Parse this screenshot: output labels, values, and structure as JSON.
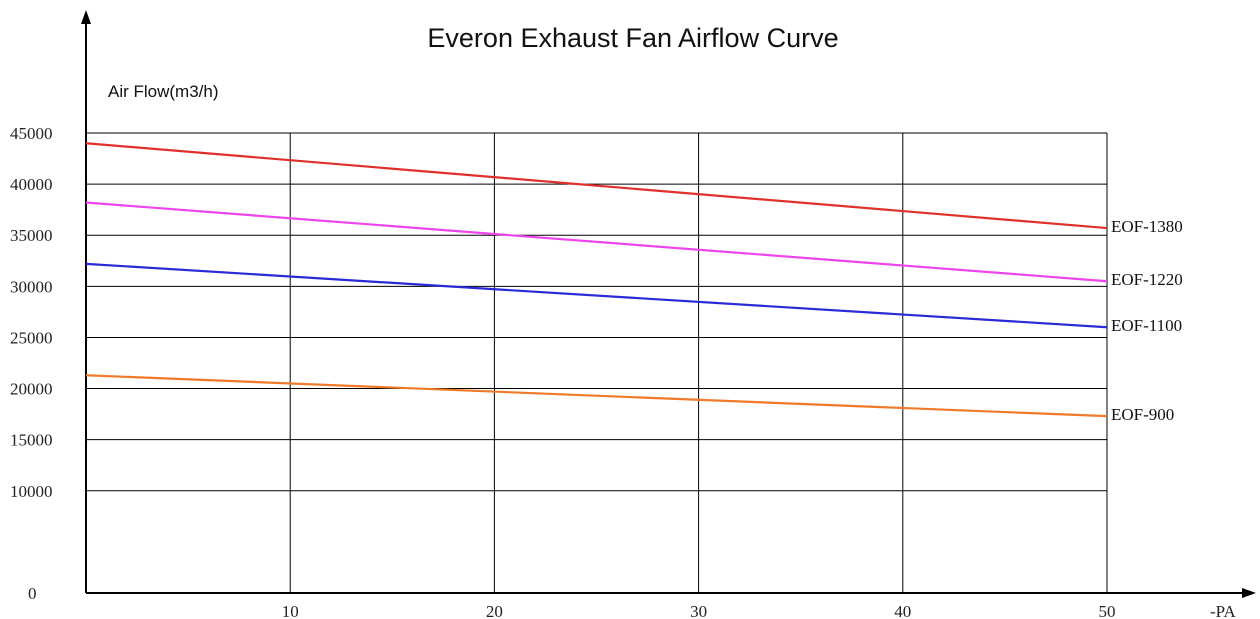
{
  "chart_data": {
    "type": "line",
    "title": "Everon Exhaust Fan Airflow Curve",
    "ylabel": "Air Flow(m3/h)",
    "xlabel": "-PA",
    "xlim": [
      0,
      50
    ],
    "ylim": [
      0,
      45000
    ],
    "x_ticks": [
      10,
      20,
      30,
      40,
      50
    ],
    "y_ticks": [
      0,
      10000,
      15000,
      20000,
      25000,
      30000,
      35000,
      40000,
      45000
    ],
    "grid": true,
    "series": [
      {
        "name": "EOF-1380",
        "color": "#e0302a",
        "x": [
          0,
          50
        ],
        "y": [
          44000,
          35700
        ]
      },
      {
        "name": "EOF-1220",
        "color": "#ee44ee",
        "x": [
          0,
          50
        ],
        "y": [
          38200,
          30500
        ]
      },
      {
        "name": "EOF-1100",
        "color": "#2a2ad6",
        "x": [
          0,
          50
        ],
        "y": [
          32200,
          26000
        ]
      },
      {
        "name": "EOF-900",
        "color": "#f07a2a",
        "x": [
          0,
          50
        ],
        "y": [
          21300,
          17300
        ]
      }
    ]
  }
}
